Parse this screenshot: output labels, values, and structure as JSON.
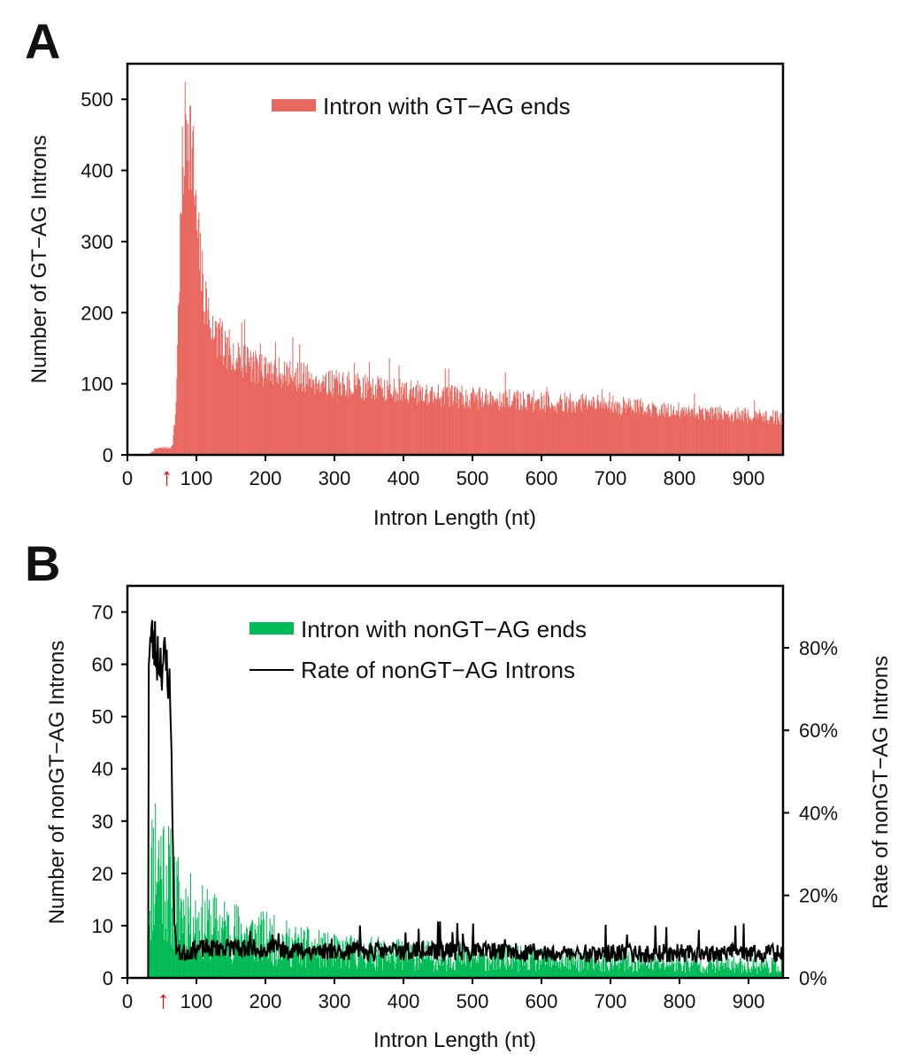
{
  "chart_data": [
    {
      "type": "bar",
      "panel_label": "A",
      "xlabel": "Intron Length (nt)",
      "ylabel": "Number of GT−AG Introns",
      "xlim": [
        0,
        950
      ],
      "ylim": [
        0,
        550
      ],
      "x_ticks": [
        "0",
        "100",
        "200",
        "300",
        "400",
        "500",
        "600",
        "700",
        "800",
        "900"
      ],
      "y_ticks": [
        "0",
        "100",
        "200",
        "300",
        "400",
        "500"
      ],
      "legend": {
        "label": "Intron with GT−AG ends",
        "color": "#e8685f",
        "position": "top-center"
      },
      "marker": {
        "symbol": "↑",
        "x": 57,
        "color": "#ff0000"
      },
      "series": [
        {
          "name": "Intron with GT−AG ends",
          "color": "#e8685f",
          "x": [
            30,
            35,
            40,
            50,
            60,
            65,
            70,
            75,
            80,
            85,
            88,
            90,
            95,
            100,
            110,
            120,
            130,
            150,
            170,
            200,
            250,
            300,
            400,
            500,
            600,
            700,
            800,
            900,
            950
          ],
          "values": [
            0,
            4,
            8,
            10,
            10,
            12,
            60,
            250,
            400,
            470,
            480,
            460,
            410,
            320,
            230,
            190,
            165,
            145,
            130,
            120,
            110,
            100,
            90,
            80,
            75,
            70,
            62,
            55,
            52
          ]
        }
      ]
    },
    {
      "type": "bar",
      "panel_label": "B",
      "xlabel": "Intron Length (nt)",
      "ylabel": "Number of nonGT−AG Introns",
      "y2label": "Rate of nonGT−AG Introns",
      "xlim": [
        0,
        950
      ],
      "ylim": [
        0,
        75
      ],
      "y2lim": [
        0,
        0.95
      ],
      "x_ticks": [
        "0",
        "100",
        "200",
        "300",
        "400",
        "500",
        "600",
        "700",
        "800",
        "900"
      ],
      "y_ticks": [
        "0",
        "10",
        "20",
        "30",
        "40",
        "50",
        "60",
        "70"
      ],
      "y2_ticks": [
        "0%",
        "20%",
        "40%",
        "60%",
        "80%"
      ],
      "legend": [
        {
          "label": "Intron with nonGT−AG ends",
          "color": "#00bb55",
          "kind": "bar"
        },
        {
          "label": "Rate of nonGT−AG Introns",
          "color": "#000000",
          "kind": "line"
        }
      ],
      "marker": {
        "symbol": "↑",
        "x": 52,
        "color": "#ff0000"
      },
      "series": [
        {
          "name": "Intron with nonGT−AG ends",
          "color": "#00bb55",
          "x": [
            30,
            31,
            35,
            40,
            45,
            50,
            55,
            60,
            70,
            80,
            100,
            120,
            150,
            200,
            250,
            300,
            400,
            500,
            600,
            700,
            800,
            900,
            950
          ],
          "values": [
            0,
            14,
            20,
            24,
            22,
            22,
            20,
            18,
            15,
            13,
            11,
            10,
            9,
            7.5,
            6,
            5,
            4.5,
            4,
            3.5,
            3,
            2.8,
            2.5,
            2.5
          ]
        },
        {
          "name": "Rate of nonGT−AG Introns",
          "color": "#000000",
          "axis": "right",
          "x": [
            30,
            31,
            35,
            40,
            45,
            50,
            55,
            60,
            64,
            66,
            68,
            70,
            75,
            80,
            100,
            150,
            200,
            300,
            400,
            500,
            600,
            700,
            800,
            900,
            950
          ],
          "values": [
            0,
            0.8,
            0.82,
            0.8,
            0.78,
            0.77,
            0.76,
            0.74,
            0.55,
            0.3,
            0.15,
            0.08,
            0.06,
            0.06,
            0.07,
            0.075,
            0.07,
            0.065,
            0.065,
            0.065,
            0.06,
            0.06,
            0.06,
            0.06,
            0.06
          ]
        }
      ]
    }
  ]
}
